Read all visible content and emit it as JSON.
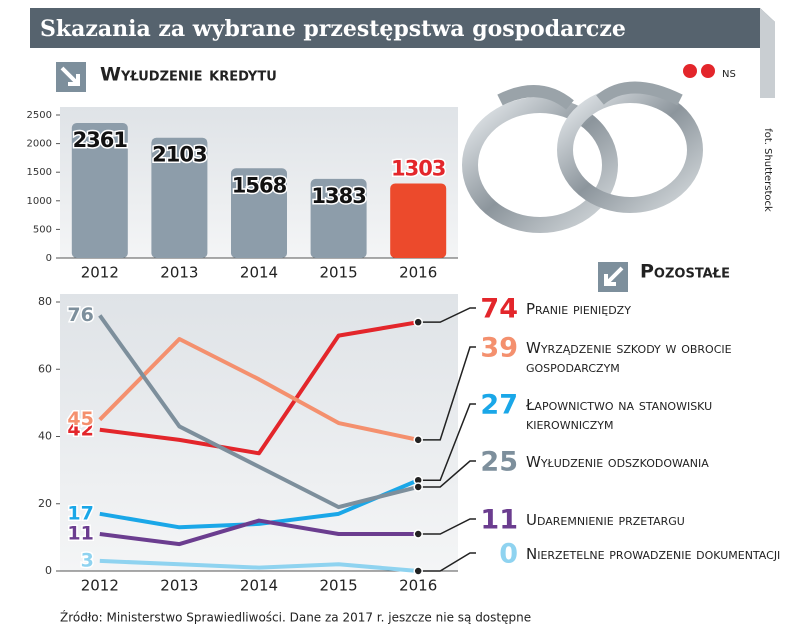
{
  "header": {
    "title": "Skazania za wybrane przestępstwa gospodarcze",
    "author": "NS",
    "photo_credit": "fot. Shutterstock"
  },
  "chart_data": [
    {
      "type": "bar",
      "title": "Wyłudzenie kredytu",
      "categories": [
        "2012",
        "2013",
        "2014",
        "2015",
        "2016"
      ],
      "values": [
        2361,
        2103,
        1568,
        1383,
        1303
      ],
      "colors": [
        "#8d9daa",
        "#8d9daa",
        "#8d9daa",
        "#8d9daa",
        "#ec4a2c"
      ],
      "value_label_colors": [
        "#111111",
        "#111111",
        "#111111",
        "#111111",
        "#e3262b"
      ],
      "ylim": [
        0,
        2500
      ],
      "yticks": [
        0,
        500,
        1000,
        1500,
        2000,
        2500
      ]
    },
    {
      "type": "line",
      "title": "Pozostałe",
      "categories": [
        "2012",
        "2013",
        "2014",
        "2015",
        "2016"
      ],
      "series": [
        {
          "name": "Pranie pieniędzy",
          "color": "#e3262b",
          "values": [
            42,
            39,
            35,
            70,
            74
          ]
        },
        {
          "name": "Wyrządzenie szkody w obrocie gospodarczym",
          "color": "#f4906e",
          "values": [
            45,
            69,
            57,
            44,
            39
          ]
        },
        {
          "name": "Łapownictwo na stanowisku kierowniczym",
          "color": "#1aa7e8",
          "values": [
            17,
            13,
            14,
            17,
            27
          ]
        },
        {
          "name": "Wyłudzenie odszkodowania",
          "color": "#7d8f9c",
          "values": [
            76,
            43,
            31,
            19,
            25
          ]
        },
        {
          "name": "Udaremnienie przetargu",
          "color": "#6b3d8f",
          "values": [
            11,
            8,
            15,
            11,
            11
          ]
        },
        {
          "name": "Nierzetelne prowadzenie dokumentacji",
          "color": "#8fd3f0",
          "values": [
            3,
            2,
            1,
            2,
            0
          ]
        }
      ],
      "ylim": [
        0,
        80
      ],
      "yticks": [
        0,
        20,
        40,
        60,
        80
      ]
    }
  ],
  "source": "Źródło: Ministerstwo Sprawiedliwości. Dane za 2017 r. jeszcze nie są dostępne"
}
